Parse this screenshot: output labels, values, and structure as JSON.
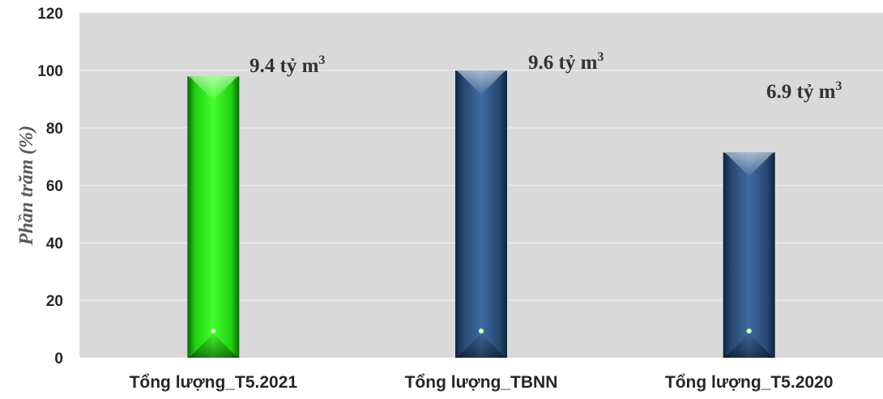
{
  "chart_data": {
    "type": "bar",
    "title": "",
    "xlabel": "",
    "ylabel": "Phần trăm (%)",
    "ylim": [
      0,
      120
    ],
    "yticks": [
      0,
      20,
      40,
      60,
      80,
      100,
      120
    ],
    "grid": true,
    "legend": "none",
    "categories": [
      "Tổng lượng_T5.2021",
      "Tổng lượng_TBNN",
      "Tổng lượng_T5.2020"
    ],
    "values": [
      98,
      100,
      71.5
    ],
    "data_labels": [
      {
        "base": "9.4 tỷ m",
        "sup": "3"
      },
      {
        "base": "9.6 tỷ m",
        "sup": "3"
      },
      {
        "base": "6.9 tỷ m",
        "sup": "3"
      }
    ],
    "colors": {
      "plot_background": "#d9d9d9",
      "gridline": "#eeeeee",
      "bar_green": "#33ee22",
      "bar_blue": "#2b4f7e"
    },
    "bar_colors": [
      "green",
      "blue",
      "blue"
    ]
  }
}
